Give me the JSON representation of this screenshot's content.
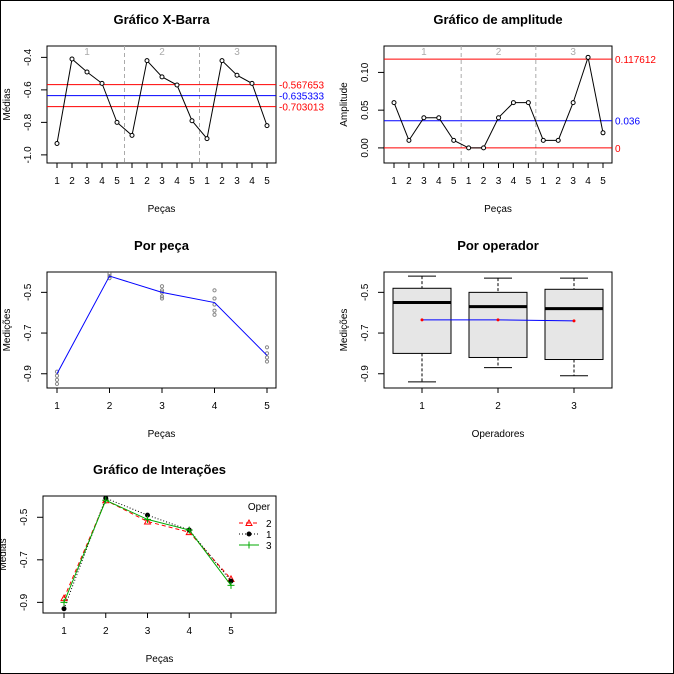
{
  "chart_data": [
    {
      "type": "line",
      "title": "Gráfico X-Barra",
      "xlabel": "Peças",
      "ylabel": "Médias",
      "categories": [
        "1",
        "2",
        "3",
        "4",
        "5",
        "1",
        "2",
        "3",
        "4",
        "5",
        "1",
        "2",
        "3",
        "4",
        "5"
      ],
      "groups": [
        "1",
        "2",
        "3"
      ],
      "values": [
        -0.93,
        -0.41,
        -0.49,
        -0.56,
        -0.8,
        -0.88,
        -0.42,
        -0.52,
        -0.57,
        -0.79,
        -0.9,
        -0.42,
        -0.51,
        -0.56,
        -0.82
      ],
      "ylim": [
        -1.05,
        -0.33
      ],
      "yticks": [
        -1.0,
        -0.8,
        -0.6,
        -0.4
      ],
      "ytick_labels": [
        "-1.0",
        "-0.8",
        "-0.6",
        "-0.4"
      ],
      "limits": [
        {
          "value": -0.567653,
          "label": "-0.567653",
          "color": "#ff0000"
        },
        {
          "value": -0.635333,
          "label": "-0.635333",
          "color": "#0000ff"
        },
        {
          "value": -0.703013,
          "label": "-0.703013",
          "color": "#ff0000"
        }
      ]
    },
    {
      "type": "line",
      "title": "Gráfico de amplitude",
      "xlabel": "Peças",
      "ylabel": "Amplitude",
      "categories": [
        "1",
        "2",
        "3",
        "4",
        "5",
        "1",
        "2",
        "3",
        "4",
        "5",
        "1",
        "2",
        "3",
        "4",
        "5"
      ],
      "groups": [
        "1",
        "2",
        "3"
      ],
      "values": [
        0.06,
        0.01,
        0.04,
        0.04,
        0.01,
        0.0,
        0.0,
        0.04,
        0.06,
        0.06,
        0.01,
        0.01,
        0.06,
        0.12,
        0.02
      ],
      "ylim": [
        -0.02,
        0.135
      ],
      "yticks": [
        0.0,
        0.05,
        0.1
      ],
      "ytick_labels": [
        "0.00",
        "0.05",
        "0.10"
      ],
      "limits": [
        {
          "value": 0.117612,
          "label": "0.117612",
          "color": "#ff0000"
        },
        {
          "value": 0.036,
          "label": "0.036",
          "color": "#0000ff"
        },
        {
          "value": 0.0,
          "label": "0",
          "color": "#ff0000"
        }
      ]
    },
    {
      "type": "scatter",
      "title": "Por peça",
      "xlabel": "Peças",
      "ylabel": "Medições",
      "categories": [
        "1",
        "2",
        "3",
        "4",
        "5"
      ],
      "points": [
        [
          -0.89,
          -0.91,
          -0.93,
          -0.95
        ],
        [
          -0.41,
          -0.42,
          -0.43
        ],
        [
          -0.47,
          -0.49,
          -0.5,
          -0.52,
          -0.53
        ],
        [
          -0.49,
          -0.53,
          -0.56,
          -0.59,
          -0.61
        ],
        [
          -0.77,
          -0.8,
          -0.82,
          -0.84
        ]
      ],
      "means": [
        -0.9,
        -0.42,
        -0.5,
        -0.55,
        -0.81
      ],
      "ylim": [
        -0.97,
        -0.4
      ],
      "yticks": [
        -0.9,
        -0.7,
        -0.5
      ],
      "ytick_labels": [
        "-0.9",
        "-0.7",
        "-0.5"
      ]
    },
    {
      "type": "box",
      "title": "Por operador",
      "xlabel": "Operadores",
      "ylabel": "Medições",
      "categories": [
        "1",
        "2",
        "3"
      ],
      "boxes": [
        {
          "min": -0.94,
          "q1": -0.8,
          "median": -0.55,
          "q3": -0.48,
          "max": -0.42,
          "mean": -0.635
        },
        {
          "min": -0.87,
          "q1": -0.82,
          "median": -0.57,
          "q3": -0.5,
          "max": -0.43,
          "mean": -0.635
        },
        {
          "min": -0.91,
          "q1": -0.83,
          "median": -0.58,
          "q3": -0.485,
          "max": -0.43,
          "mean": -0.64
        }
      ],
      "ylim": [
        -0.97,
        -0.4
      ],
      "yticks": [
        -0.9,
        -0.7,
        -0.5
      ],
      "ytick_labels": [
        "-0.9",
        "-0.7",
        "-0.5"
      ]
    },
    {
      "type": "line",
      "title": "Gráfico de Interações",
      "xlabel": "Peças",
      "ylabel": "Médias",
      "categories": [
        "1",
        "2",
        "3",
        "4",
        "5"
      ],
      "legend_title": "Oper",
      "legend_position": "top-right",
      "series": [
        {
          "name": "2",
          "values": [
            -0.88,
            -0.42,
            -0.52,
            -0.57,
            -0.79
          ],
          "color": "#ff0000",
          "dash": "4,3",
          "marker": "triangle"
        },
        {
          "name": "1",
          "values": [
            -0.93,
            -0.41,
            -0.49,
            -0.56,
            -0.8
          ],
          "color": "#000000",
          "dash": "1,2",
          "marker": "circle"
        },
        {
          "name": "3",
          "values": [
            -0.9,
            -0.42,
            -0.51,
            -0.56,
            -0.82
          ],
          "color": "#00aa00",
          "dash": "",
          "marker": "plus"
        }
      ],
      "ylim": [
        -0.95,
        -0.4
      ],
      "yticks": [
        -0.9,
        -0.7,
        -0.5
      ],
      "ytick_labels": [
        "-0.9",
        "-0.7",
        "-0.5"
      ]
    }
  ]
}
